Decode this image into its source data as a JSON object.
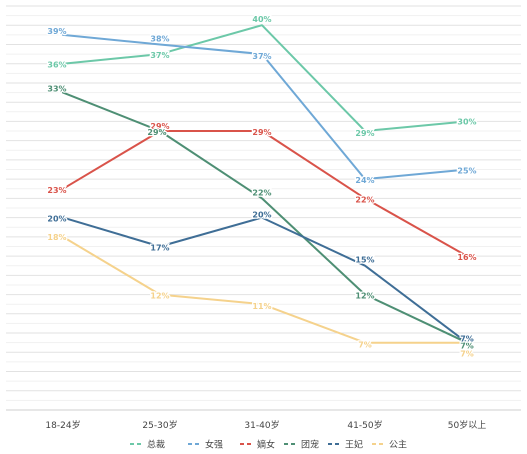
{
  "chart_data": {
    "type": "line",
    "categories": [
      "18-24岁",
      "25-30岁",
      "31-40岁",
      "41-50岁",
      "50岁以上"
    ],
    "ylim": [
      0,
      42
    ],
    "grid": true,
    "legend_position": "bottom",
    "series": [
      {
        "name": "总裁",
        "color": "#6cc8a8",
        "values": [
          36,
          37,
          40,
          29,
          30
        ],
        "labels": [
          "36%",
          "37%",
          "40%",
          "29%",
          "30%"
        ]
      },
      {
        "name": "女强",
        "color": "#6fa8d6",
        "values": [
          39,
          38,
          37,
          24,
          25
        ],
        "labels": [
          "39%",
          "38%",
          "37%",
          "24%",
          "25%"
        ]
      },
      {
        "name": "嫡女",
        "color": "#d9534a",
        "values": [
          23,
          29,
          29,
          22,
          16
        ],
        "labels": [
          "23%",
          "29%",
          "29%",
          "22%",
          "16%"
        ]
      },
      {
        "name": "团宠",
        "color": "#4e8f74",
        "values": [
          33,
          29,
          22,
          12,
          7
        ],
        "labels": [
          "33%",
          "29%",
          "22%",
          "12%",
          "7%"
        ]
      },
      {
        "name": "王妃",
        "color": "#3f6e96",
        "values": [
          20,
          17,
          20,
          15,
          7
        ],
        "labels": [
          "20%",
          "17%",
          "20%",
          "15%",
          "7%"
        ]
      },
      {
        "name": "公主",
        "color": "#f5d28c",
        "values": [
          18,
          12,
          11,
          7,
          7
        ],
        "labels": [
          "18%",
          "12%",
          "11%",
          "7%",
          "7%"
        ]
      }
    ]
  }
}
